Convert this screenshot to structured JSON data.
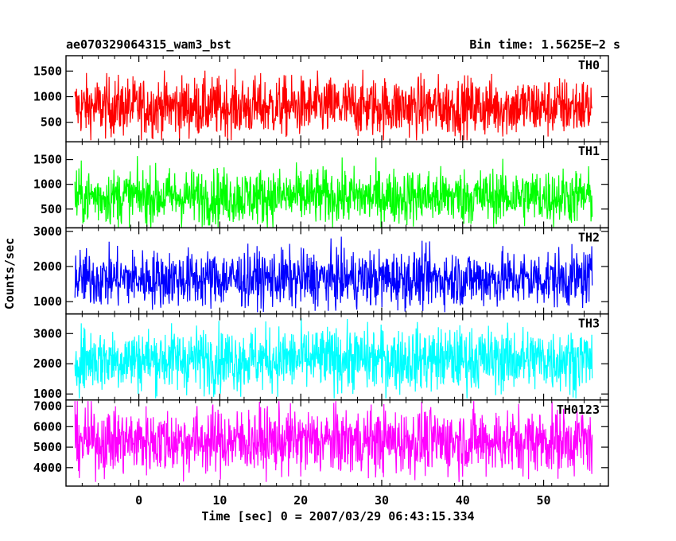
{
  "header": {
    "title": "ae070329064315_wam3_bst",
    "bin_time": "Bin time: 1.5625E−2 s"
  },
  "xlabel": "Time [sec] 0 = 2007/03/29 06:43:15.334",
  "ylabel": "Counts/sec",
  "chart_data": {
    "type": "line",
    "title": "ae070329064315_wam3_bst",
    "subtitle": "Bin time: 1.5625E−2 s",
    "xlabel": "Time [sec] 0 = 2007/03/29 06:43:15.334",
    "ylabel": "Counts/sec",
    "xlim": [
      -9,
      58
    ],
    "data_x_range": [
      -7.9,
      56.0
    ],
    "bin_time_s": 0.015625,
    "x_ticks": [
      0,
      10,
      20,
      30,
      40,
      50
    ],
    "grid": false,
    "legend": "none",
    "panels": [
      {
        "name": "TH0",
        "color": "#ff0000",
        "ylim": [
          120,
          1800
        ],
        "y_ticks": [
          500,
          1000,
          1500
        ],
        "mean": 800,
        "typical_range": [
          300,
          1450
        ],
        "extremes": [
          150,
          1800
        ]
      },
      {
        "name": "TH1",
        "color": "#00ff00",
        "ylim": [
          120,
          1860
        ],
        "y_ticks": [
          500,
          1000,
          1500
        ],
        "mean": 750,
        "typical_range": [
          280,
          1400
        ],
        "extremes": [
          130,
          1850
        ]
      },
      {
        "name": "TH2",
        "color": "#0000ff",
        "ylim": [
          650,
          3100
        ],
        "y_ticks": [
          1000,
          2000,
          3000
        ],
        "mean": 1650,
        "typical_range": [
          900,
          2500
        ],
        "extremes": [
          700,
          3050
        ]
      },
      {
        "name": "TH3",
        "color": "#00ffff",
        "ylim": [
          800,
          3650
        ],
        "y_ticks": [
          1000,
          2000,
          3000
        ],
        "mean": 2150,
        "typical_range": [
          1200,
          3300
        ],
        "extremes": [
          850,
          3500
        ]
      },
      {
        "name": "TH0123",
        "color": "#ff00ff",
        "ylim": [
          3100,
          7300
        ],
        "y_ticks": [
          4000,
          5000,
          6000,
          7000
        ],
        "mean": 5300,
        "typical_range": [
          3700,
          6900
        ],
        "extremes": [
          3300,
          7250
        ]
      }
    ]
  }
}
